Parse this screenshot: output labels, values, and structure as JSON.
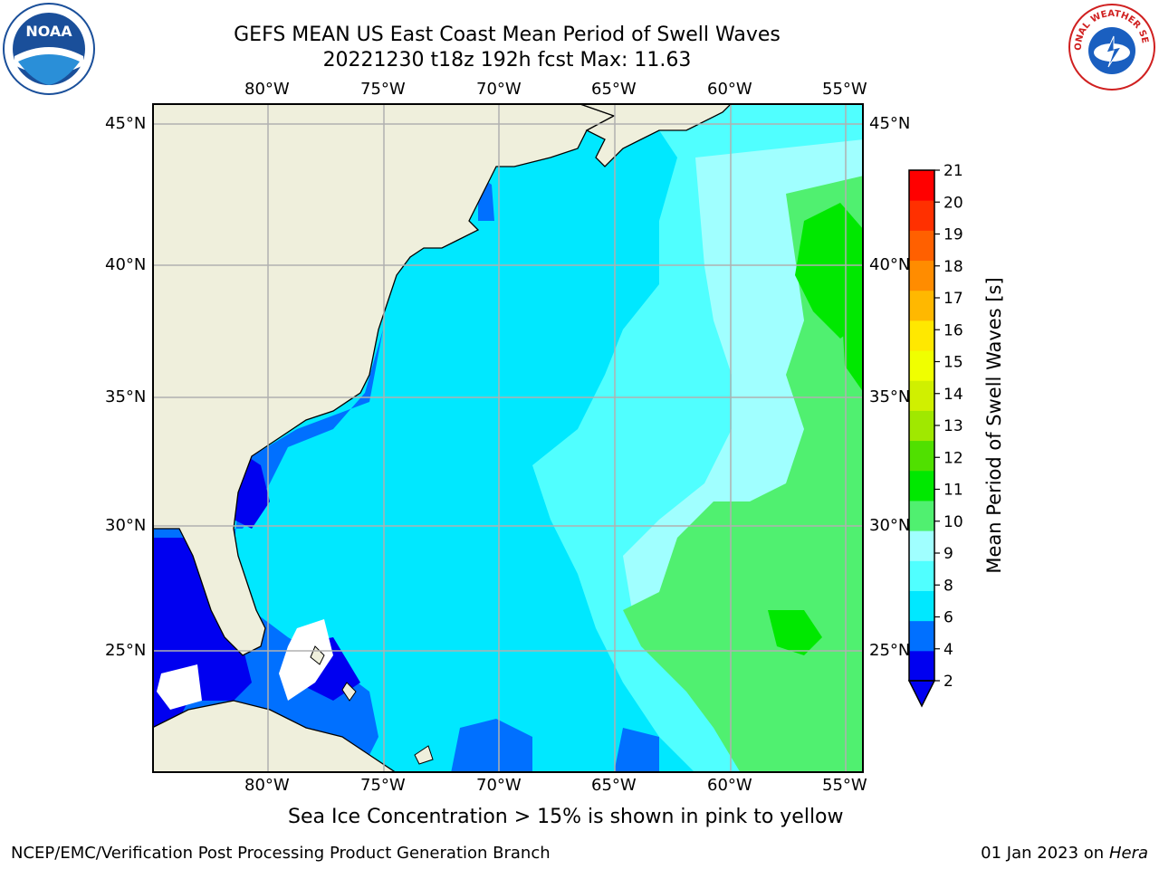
{
  "header": {
    "title_line1": "GEFS MEAN US East Coast Mean Period of Swell Waves",
    "title_line2": "20221230 t18z 192h fcst   Max: 11.63"
  },
  "map": {
    "lon_ticks": [
      "80°W",
      "75°W",
      "70°W",
      "65°W",
      "60°W",
      "55°W"
    ],
    "lat_ticks": [
      "45°N",
      "40°N",
      "35°N",
      "30°N",
      "25°N"
    ],
    "colors": {
      "land": "#efefdc",
      "grid": "#b0b0b0",
      "missing": "#ffffff"
    }
  },
  "colorbar": {
    "label": "Mean Period of Swell Waves [s]",
    "ticks": [
      "21",
      "20",
      "19",
      "18",
      "17",
      "16",
      "15",
      "14",
      "13",
      "12",
      "11",
      "10",
      "9",
      "8",
      "6",
      "4",
      "2"
    ],
    "colors": [
      "#0000f0",
      "#0070ff",
      "#00e8ff",
      "#50ffff",
      "#a0ffff",
      "#50f070",
      "#00e800",
      "#50e000",
      "#a0e800",
      "#d0f000",
      "#f0ff00",
      "#ffe800",
      "#ffb800",
      "#ff8c00",
      "#ff6000",
      "#ff3000",
      "#ff0000"
    ]
  },
  "footer": {
    "note": "Sea Ice Concentration > 15% is shown in pink to yellow",
    "left": "NCEP/EMC/Verification Post Processing Product Generation Branch",
    "right_date": "01 Jan 2023 on",
    "right_host": "Hera"
  },
  "logos": {
    "noaa": "NOAA",
    "nws_text": "NATIONAL WEATHER SERVICE"
  }
}
